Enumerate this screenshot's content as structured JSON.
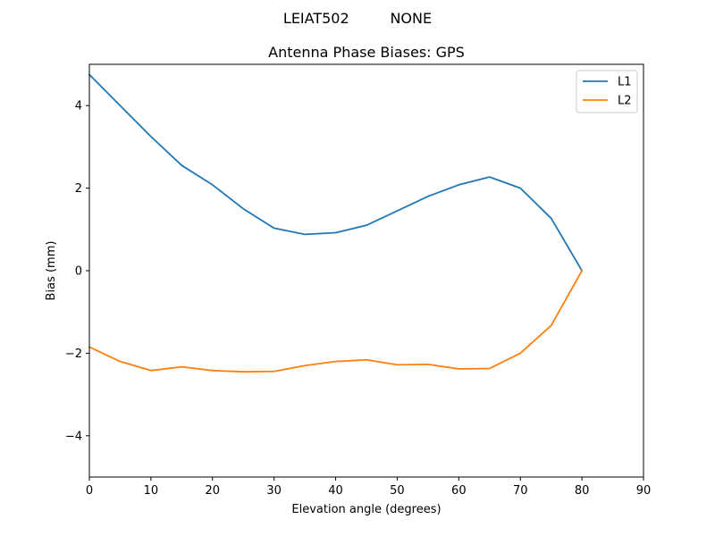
{
  "chart_data": {
    "type": "line",
    "suptitle": "LEIAT502         NONE",
    "title": "Antenna Phase Biases: GPS",
    "xlabel": "Elevation angle (degrees)",
    "ylabel": "Bias (mm)",
    "xlim": [
      0,
      90
    ],
    "ylim": [
      -5,
      5
    ],
    "xticks": [
      0,
      10,
      20,
      30,
      40,
      50,
      60,
      70,
      80,
      90
    ],
    "yticks": [
      -4,
      -2,
      0,
      2,
      4
    ],
    "x": [
      0,
      5,
      10,
      15,
      20,
      25,
      30,
      35,
      40,
      45,
      50,
      55,
      60,
      65,
      70,
      75,
      80
    ],
    "series": [
      {
        "name": "L1",
        "color": "#1f77b4",
        "values": [
          4.75,
          4.0,
          3.25,
          2.55,
          2.08,
          1.5,
          1.03,
          0.88,
          0.92,
          1.1,
          1.45,
          1.8,
          2.08,
          2.27,
          2.0,
          1.27,
          0.0
        ]
      },
      {
        "name": "L2",
        "color": "#ff7f0e",
        "values": [
          -1.85,
          -2.2,
          -2.42,
          -2.33,
          -2.42,
          -2.45,
          -2.44,
          -2.3,
          -2.2,
          -2.16,
          -2.28,
          -2.27,
          -2.38,
          -2.37,
          -2.0,
          -1.33,
          0.0
        ]
      }
    ],
    "grid": false,
    "legend_position": "upper right"
  }
}
